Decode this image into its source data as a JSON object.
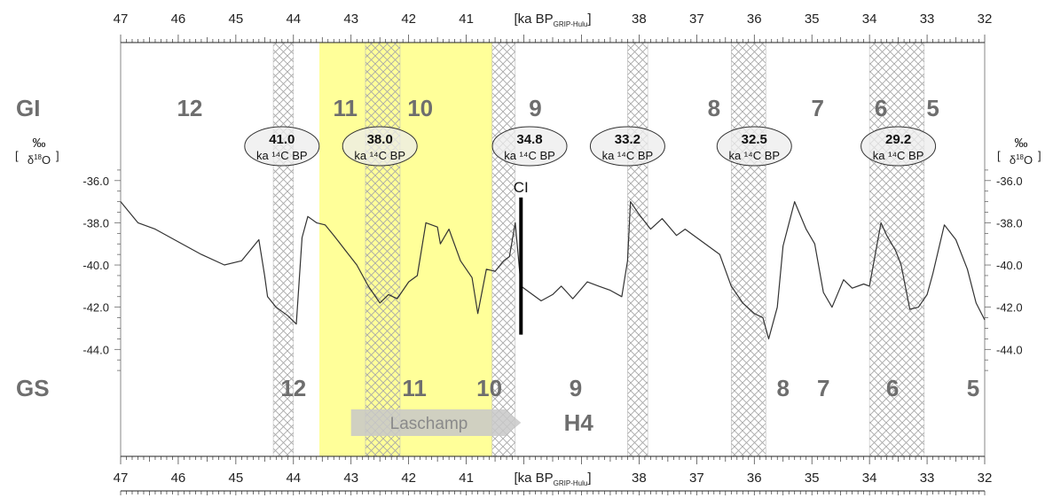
{
  "chart_data": {
    "type": "line",
    "title": "",
    "x_axis": {
      "label": "ka BP",
      "label_sub": "GRIP-Hulu",
      "range": [
        47,
        32
      ],
      "reversed": true,
      "ticks": [
        47,
        46,
        45,
        44,
        43,
        42,
        41,
        38,
        37,
        36,
        35,
        34,
        33,
        32
      ],
      "label_position_ka": 39.5
    },
    "y_axis": {
      "unit": "‰",
      "quantity": "δ18O",
      "range": [
        -45.5,
        -35.0
      ],
      "ticks": [
        -36.0,
        -38.0,
        -40.0,
        -42.0,
        -44.0
      ],
      "tick_labels": [
        "-36.0",
        "-38.0",
        "-40.0",
        "-42.0",
        "-44.0"
      ]
    },
    "interstadials_label": "GI",
    "stadials_label": "GS",
    "interstadials": [
      {
        "label": "12",
        "x": 45.8
      },
      {
        "label": "11",
        "x": 43.1
      },
      {
        "label": "10",
        "x": 41.8
      },
      {
        "label": "9",
        "x": 39.8
      },
      {
        "label": "8",
        "x": 36.7
      },
      {
        "label": "7",
        "x": 34.9
      },
      {
        "label": "6",
        "x": 33.8
      },
      {
        "label": "5",
        "x": 32.9
      }
    ],
    "stadials": [
      {
        "label": "12",
        "x": 44.0
      },
      {
        "label": "11",
        "x": 41.9
      },
      {
        "label": "10",
        "x": 40.6
      },
      {
        "label": "9",
        "x": 39.1
      },
      {
        "label": "8",
        "x": 35.5
      },
      {
        "label": "7",
        "x": 34.8
      },
      {
        "label": "6",
        "x": 33.6
      },
      {
        "label": "5",
        "x": 32.2
      }
    ],
    "radiocarbon_dates": [
      {
        "value": "41.0",
        "unit": "ka ¹⁴C BP",
        "x": 44.2
      },
      {
        "value": "38.0",
        "unit": "ka ¹⁴C BP",
        "x": 42.5
      },
      {
        "value": "34.8",
        "unit": "ka ¹⁴C BP",
        "x": 39.9
      },
      {
        "value": "33.2",
        "unit": "ka ¹⁴C BP",
        "x": 38.2
      },
      {
        "value": "32.5",
        "unit": "ka ¹⁴C BP",
        "x": 36.0
      },
      {
        "value": "29.2",
        "unit": "ka ¹⁴C BP",
        "x": 33.5
      }
    ],
    "hatched_bands": [
      {
        "x_from": 44.35,
        "x_to": 44.0
      },
      {
        "x_from": 42.75,
        "x_to": 42.15
      },
      {
        "x_from": 40.55,
        "x_to": 40.15
      },
      {
        "x_from": 38.2,
        "x_to": 37.85
      },
      {
        "x_from": 36.4,
        "x_to": 35.8
      },
      {
        "x_from": 34.0,
        "x_to": 33.05
      }
    ],
    "laschamp_band": {
      "x_from": 43.55,
      "x_to": 40.55,
      "color": "#ffff99"
    },
    "laschamp_arrow": {
      "label": "Laschamp",
      "x_from": 43.0,
      "x_to": 40.05
    },
    "ci_marker": {
      "label": "CI",
      "x": 40.05,
      "y_top": -36.8,
      "y_bottom": -43.3
    },
    "h4_label": {
      "label": "H4",
      "x": 39.05
    },
    "series": [
      {
        "color": "#333333",
        "x": [
          47.0,
          46.7,
          46.4,
          46.0,
          45.6,
          45.2,
          44.9,
          44.6,
          44.5,
          44.45,
          44.3,
          44.1,
          43.95,
          43.85,
          43.75,
          43.6,
          43.45,
          43.3,
          43.1,
          42.9,
          42.7,
          42.5,
          42.35,
          42.2,
          42.0,
          41.85,
          41.7,
          41.5,
          41.45,
          41.3,
          41.1,
          40.9,
          40.8,
          40.65,
          40.5,
          40.35,
          40.25,
          40.15,
          40.05,
          39.9,
          39.7,
          39.5,
          39.35,
          39.15,
          38.9,
          38.7,
          38.5,
          38.3,
          38.2,
          38.15,
          38.0,
          37.8,
          37.6,
          37.35,
          37.2,
          36.9,
          36.6,
          36.4,
          36.2,
          36.0,
          35.85,
          35.75,
          35.6,
          35.5,
          35.3,
          35.1,
          34.95,
          34.8,
          34.65,
          34.45,
          34.3,
          34.1,
          34.0,
          33.8,
          33.7,
          33.55,
          33.45,
          33.3,
          33.15,
          33.0,
          32.9,
          32.7,
          32.5,
          32.3,
          32.15,
          32.0
        ],
        "y": [
          -37.0,
          -38.0,
          -38.3,
          -38.9,
          -39.5,
          -40.0,
          -39.8,
          -38.8,
          -40.5,
          -41.5,
          -42.0,
          -42.4,
          -42.8,
          -38.7,
          -37.7,
          -38.0,
          -38.1,
          -38.6,
          -39.3,
          -40.0,
          -41.0,
          -41.8,
          -41.4,
          -41.6,
          -40.8,
          -40.5,
          -38.0,
          -38.2,
          -39.0,
          -38.3,
          -39.8,
          -40.6,
          -42.3,
          -40.2,
          -40.3,
          -39.8,
          -39.6,
          -38.0,
          -41.0,
          -41.3,
          -41.7,
          -41.4,
          -41.0,
          -41.6,
          -40.8,
          -41.0,
          -41.2,
          -41.5,
          -39.8,
          -37.0,
          -37.6,
          -38.3,
          -37.8,
          -38.6,
          -38.3,
          -38.9,
          -39.5,
          -41.0,
          -41.8,
          -42.3,
          -42.5,
          -43.5,
          -42.0,
          -39.1,
          -37.0,
          -38.3,
          -39.0,
          -41.3,
          -42.0,
          -40.7,
          -41.1,
          -40.9,
          -41.0,
          -38.0,
          -38.6,
          -39.3,
          -40.0,
          -42.1,
          -42.0,
          -41.4,
          -40.4,
          -38.1,
          -38.8,
          -40.2,
          -41.8,
          -42.6
        ]
      }
    ]
  }
}
